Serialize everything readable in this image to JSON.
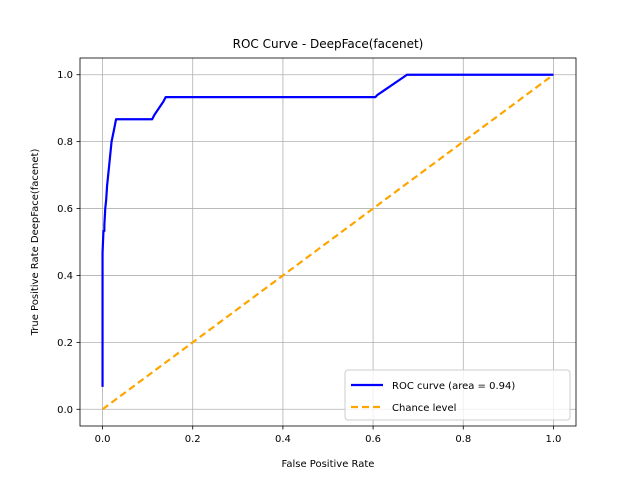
{
  "chart_data": {
    "type": "line",
    "title": "ROC Curve - DeepFace(facenet)",
    "xlabel": "False Positive Rate",
    "ylabel": "True Positive Rate DeepFace(facenet)",
    "xlim": [
      -0.05,
      1.05
    ],
    "ylim": [
      -0.05,
      1.05
    ],
    "xticks": [
      0.0,
      0.2,
      0.4,
      0.6,
      0.8,
      1.0
    ],
    "yticks": [
      0.0,
      0.2,
      0.4,
      0.6,
      0.8,
      1.0
    ],
    "xtick_labels": [
      "0.0",
      "0.2",
      "0.4",
      "0.6",
      "0.8",
      "1.0"
    ],
    "ytick_labels": [
      "0.0",
      "0.2",
      "0.4",
      "0.6",
      "0.8",
      "1.0"
    ],
    "grid": true,
    "legend_position": "lower right",
    "series": [
      {
        "name": "ROC curve (area = 0.94)",
        "color": "#0000ff",
        "style": "solid",
        "x": [
          0.0,
          0.0,
          0.0,
          0.002,
          0.004,
          0.004,
          0.006,
          0.008,
          0.01,
          0.015,
          0.02,
          0.025,
          0.03,
          0.11,
          0.115,
          0.135,
          0.14,
          0.605,
          0.61,
          0.67,
          0.675,
          1.0
        ],
        "y": [
          0.067,
          0.4,
          0.467,
          0.533,
          0.533,
          0.55,
          0.6,
          0.625,
          0.667,
          0.733,
          0.8,
          0.833,
          0.867,
          0.867,
          0.88,
          0.92,
          0.933,
          0.933,
          0.94,
          0.995,
          1.0,
          1.0
        ]
      },
      {
        "name": "Chance level",
        "color": "#ffa500",
        "style": "dashed",
        "x": [
          0.0,
          1.0
        ],
        "y": [
          0.0,
          1.0
        ]
      }
    ]
  }
}
